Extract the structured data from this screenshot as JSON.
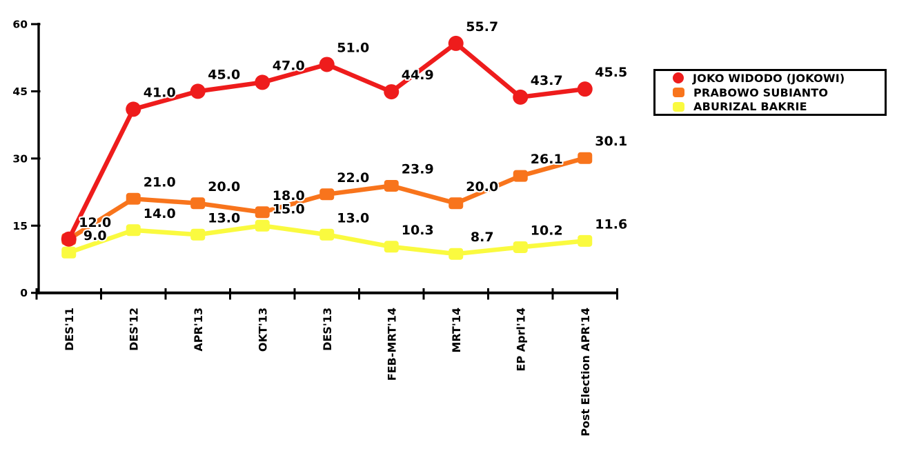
{
  "chart_data": {
    "type": "line",
    "title": "",
    "categories": [
      "DES'11",
      "DES'12",
      "APR'13",
      "OKT'13",
      "DES'13",
      "FEB-MRT'14",
      "MRT'14",
      "EP Aprl'14",
      "Post Election APR'14"
    ],
    "y_ticks": [
      "0",
      "15",
      "30",
      "45",
      "60"
    ],
    "ylim": [
      0,
      60
    ],
    "grid": false,
    "legend_position": "right",
    "series": [
      {
        "name": "JOKO WIDODO (JOKOWI)",
        "color": "#ee1c1c",
        "marker": "circle",
        "values": [
          12.0,
          41.0,
          45.0,
          47.0,
          51.0,
          44.9,
          55.7,
          43.7,
          45.5
        ],
        "labels": [
          "12.0",
          "41.0",
          "45.0",
          "47.0",
          "51.0",
          "44.9",
          "55.7",
          "43.7",
          "45.5"
        ]
      },
      {
        "name": "PRABOWO SUBIANTO",
        "color": "#f8741c",
        "marker": "square",
        "values": [
          12.0,
          21.0,
          20.0,
          18.0,
          22.0,
          23.9,
          20.0,
          26.1,
          30.1
        ],
        "labels": [
          "",
          "21.0",
          "20.0",
          "18.0",
          "22.0",
          "23.9",
          "20.0",
          "26.1",
          "30.1"
        ]
      },
      {
        "name": "ABURIZAL BAKRIE",
        "color": "#fafa3f",
        "marker": "square",
        "values": [
          9.0,
          14.0,
          13.0,
          15.0,
          13.0,
          10.3,
          8.7,
          10.2,
          11.6
        ],
        "labels": [
          "9.0",
          "14.0",
          "13.0",
          "15.0",
          "13.0",
          "10.3",
          "8.7",
          "10.2",
          "11.6"
        ]
      }
    ]
  }
}
